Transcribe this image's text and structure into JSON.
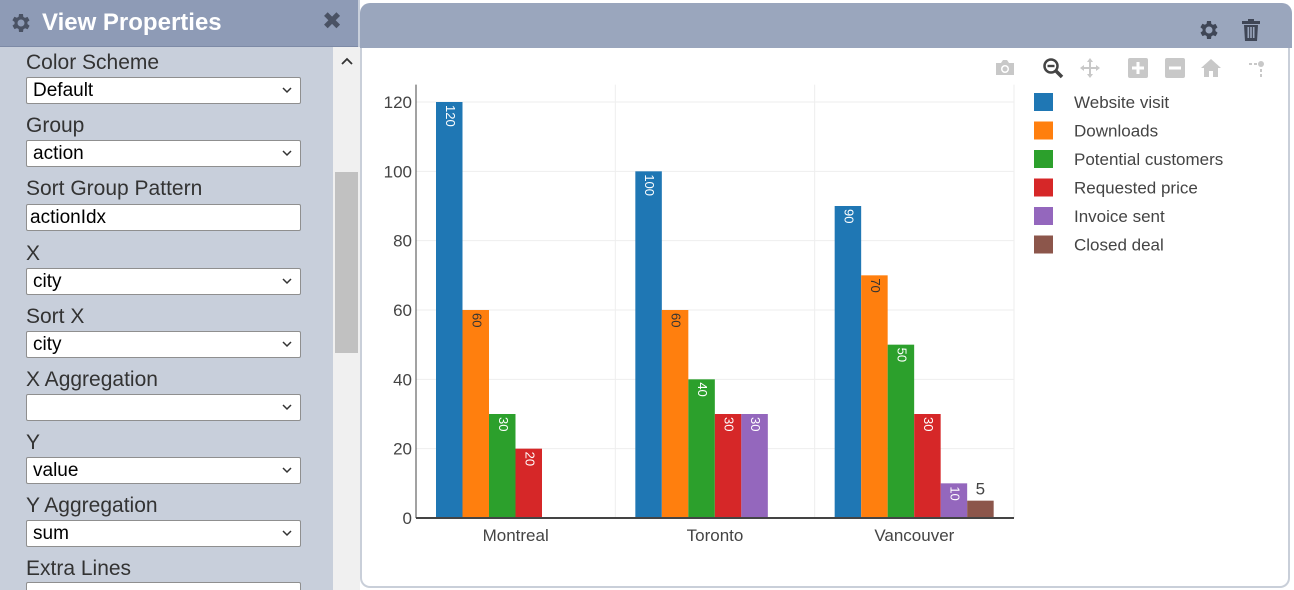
{
  "panel": {
    "title": "View Properties",
    "close_glyph": "✖",
    "fields": [
      {
        "label": "Color Scheme",
        "value": "Default",
        "kind": "select"
      },
      {
        "label": "Group",
        "value": "action",
        "kind": "select"
      },
      {
        "label": "Sort Group Pattern",
        "value": "actionIdx",
        "kind": "input"
      },
      {
        "label": "X",
        "value": "city",
        "kind": "select"
      },
      {
        "label": "Sort X",
        "value": "city",
        "kind": "select"
      },
      {
        "label": "X Aggregation",
        "value": "",
        "kind": "select"
      },
      {
        "label": "Y",
        "value": "value",
        "kind": "select"
      },
      {
        "label": "Y Aggregation",
        "value": "sum",
        "kind": "select"
      },
      {
        "label": "Extra Lines",
        "value": "",
        "kind": "select"
      }
    ]
  },
  "header": {
    "icons": [
      "gear-icon",
      "trash-icon"
    ]
  },
  "modebar": {
    "icons": [
      "camera-icon",
      "zoom-icon",
      "pan-icon",
      "zoom-in-icon",
      "zoom-out-icon",
      "home-icon",
      "spikelines-icon"
    ]
  },
  "colors": {
    "panel_header": "#8e9bb6",
    "chart_header": "#9aa6bd",
    "panel_bg": "#c8cfdb"
  },
  "chart_data": {
    "type": "bar",
    "categories": [
      "Montreal",
      "Toronto",
      "Vancouver"
    ],
    "series": [
      {
        "name": "Website visit",
        "color": "#1f77b4",
        "values": [
          120,
          100,
          90
        ]
      },
      {
        "name": "Downloads",
        "color": "#ff7f0e",
        "values": [
          60,
          60,
          70
        ]
      },
      {
        "name": "Potential customers",
        "color": "#2ca02c",
        "values": [
          30,
          40,
          50
        ]
      },
      {
        "name": "Requested price",
        "color": "#d62728",
        "values": [
          20,
          30,
          30
        ]
      },
      {
        "name": "Invoice sent",
        "color": "#9467bd",
        "values": [
          null,
          30,
          10
        ]
      },
      {
        "name": "Closed deal",
        "color": "#8c564b",
        "values": [
          null,
          null,
          5
        ]
      }
    ],
    "y_ticks": [
      0,
      20,
      40,
      60,
      80,
      100,
      120
    ],
    "ylim": [
      0,
      125
    ],
    "grid": true,
    "legend_position": "right",
    "xlabel": "",
    "ylabel": ""
  }
}
